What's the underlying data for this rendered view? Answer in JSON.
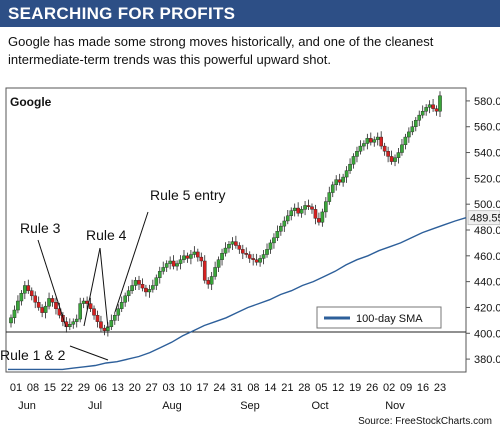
{
  "header": {
    "title": "SEARCHING FOR PROFITS",
    "subtitle": "Google has made some strong moves historically, and one of the cleanest intermediate-term trends was this powerful upward shot."
  },
  "source": "Source: FreeStockCharts.com",
  "colors": {
    "banner": "#2d4f86",
    "up": "#3aa53a",
    "down": "#d42020",
    "sma": "#2d5f9a",
    "box": "#f0f0f0"
  },
  "chart_data": {
    "type": "candlestick",
    "title": "Google",
    "ylim": [
      370,
      590
    ],
    "y_ticks": [
      "380.00",
      "400.00",
      "420.00",
      "440.00",
      "460.00",
      "480.00",
      "500.00",
      "520.00",
      "540.00",
      "560.00",
      "580.00"
    ],
    "current_price": "489.550",
    "support_level": 401,
    "x_day_labels": [
      "01",
      "08",
      "15",
      "22",
      "29",
      "06",
      "13",
      "20",
      "27",
      "03",
      "10",
      "17",
      "24",
      "31",
      "08",
      "14",
      "21",
      "28",
      "05",
      "12",
      "19",
      "26",
      "02",
      "09",
      "16",
      "23"
    ],
    "month_labels": [
      "Jun",
      "Jul",
      "Aug",
      "Sep",
      "Oct",
      "Nov"
    ],
    "legend": "100-day SMA",
    "annotations": [
      "Rule 3",
      "Rule 4",
      "Rule 5 entry",
      "Rule 1 & 2"
    ],
    "closes": [
      412,
      418,
      425,
      431,
      437,
      433,
      429,
      424,
      420,
      416,
      421,
      427,
      424,
      419,
      414,
      409,
      405,
      407,
      409,
      411,
      423,
      425,
      423,
      419,
      414,
      409,
      404,
      402,
      405,
      410,
      414,
      419,
      424,
      429,
      433,
      437,
      441,
      438,
      435,
      432,
      434,
      437,
      443,
      448,
      451,
      454,
      456,
      452,
      454,
      457,
      460,
      458,
      461,
      463,
      459,
      456,
      441,
      438,
      444,
      451,
      457,
      462,
      466,
      469,
      471,
      468,
      465,
      462,
      461,
      458,
      457,
      455,
      458,
      461,
      465,
      470,
      474,
      479,
      483,
      487,
      491,
      495,
      497,
      493,
      496,
      499,
      498,
      496,
      489,
      486,
      494,
      502,
      509,
      515,
      519,
      517,
      521,
      526,
      531,
      537,
      541,
      545,
      547,
      551,
      548,
      550,
      552,
      545,
      541,
      537,
      533,
      536,
      540,
      546,
      552,
      556,
      560,
      565,
      569,
      572,
      575,
      577,
      574,
      572,
      584
    ],
    "sma_100_day": [
      372,
      372,
      372,
      372,
      372,
      372,
      373,
      374,
      375,
      377,
      378,
      380,
      382,
      385,
      389,
      393,
      398,
      402,
      406,
      409,
      412,
      416,
      420,
      423,
      426,
      430,
      433,
      437,
      440,
      444,
      448,
      453,
      457,
      460,
      464,
      467,
      470,
      474,
      478,
      481,
      484,
      487,
      489.55
    ]
  }
}
